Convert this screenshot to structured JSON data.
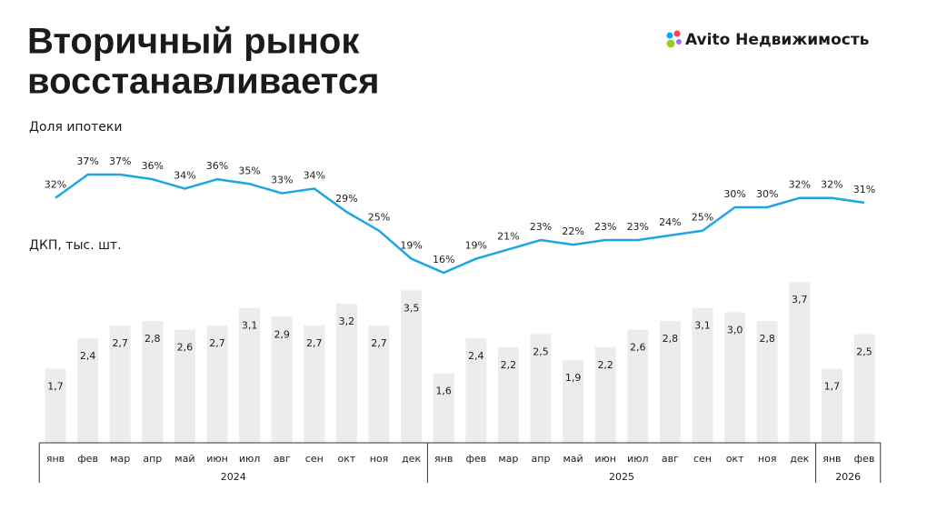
{
  "header": {
    "brand": "Avito Недвижимость"
  },
  "chart_data": {
    "type": "bar-line",
    "title": [
      "Вторичный рынок",
      "восстанавливается"
    ],
    "groups": [
      {
        "name": "2024",
        "categories": [
          "янв",
          "фев",
          "мар",
          "апр",
          "май",
          "июн",
          "июл",
          "авг",
          "сен",
          "окт",
          "ноя",
          "дек"
        ]
      },
      {
        "name": "2025",
        "categories": [
          "янв",
          "фев",
          "мар",
          "апр",
          "май",
          "июн",
          "июл",
          "авг",
          "сен",
          "окт",
          "ноя",
          "дек"
        ]
      },
      {
        "name": "2026",
        "categories": [
          "янв",
          "фев"
        ]
      }
    ],
    "series": [
      {
        "name": "Доля ипотеки",
        "type": "line",
        "color": "#1ea5e3",
        "values": [
          32,
          37,
          37,
          36,
          34,
          36,
          35,
          33,
          34,
          29,
          25,
          19,
          16,
          19,
          21,
          23,
          22,
          23,
          23,
          24,
          25,
          30,
          30,
          32,
          32,
          31
        ],
        "value_labels": [
          "32%",
          "37%",
          "37%",
          "36%",
          "34%",
          "36%",
          "35%",
          "33%",
          "34%",
          "29%",
          "25%",
          "19%",
          "16%",
          "19%",
          "21%",
          "23%",
          "22%",
          "23%",
          "23%",
          "24%",
          "25%",
          "30%",
          "30%",
          "32%",
          "32%",
          "31%"
        ]
      },
      {
        "name": "ДКП, тыс. шт.",
        "type": "bar",
        "color": "#ececec",
        "values": [
          1.7,
          2.4,
          2.7,
          2.8,
          2.6,
          2.7,
          3.1,
          2.9,
          2.7,
          3.2,
          2.7,
          3.5,
          1.6,
          2.4,
          2.2,
          2.5,
          1.9,
          2.2,
          2.6,
          2.8,
          3.1,
          3.0,
          2.8,
          3.7,
          1.7,
          2.5
        ],
        "value_labels": [
          "1,7",
          "2,4",
          "2,7",
          "2,8",
          "2,6",
          "2,7",
          "3,1",
          "2,9",
          "2,7",
          "3,2",
          "2,7",
          "3,5",
          "1,6",
          "2,4",
          "2,2",
          "2,5",
          "1,9",
          "2,2",
          "2,6",
          "2,8",
          "3,1",
          "3,0",
          "2,8",
          "3,7",
          "1,7",
          "2,5"
        ]
      }
    ]
  }
}
